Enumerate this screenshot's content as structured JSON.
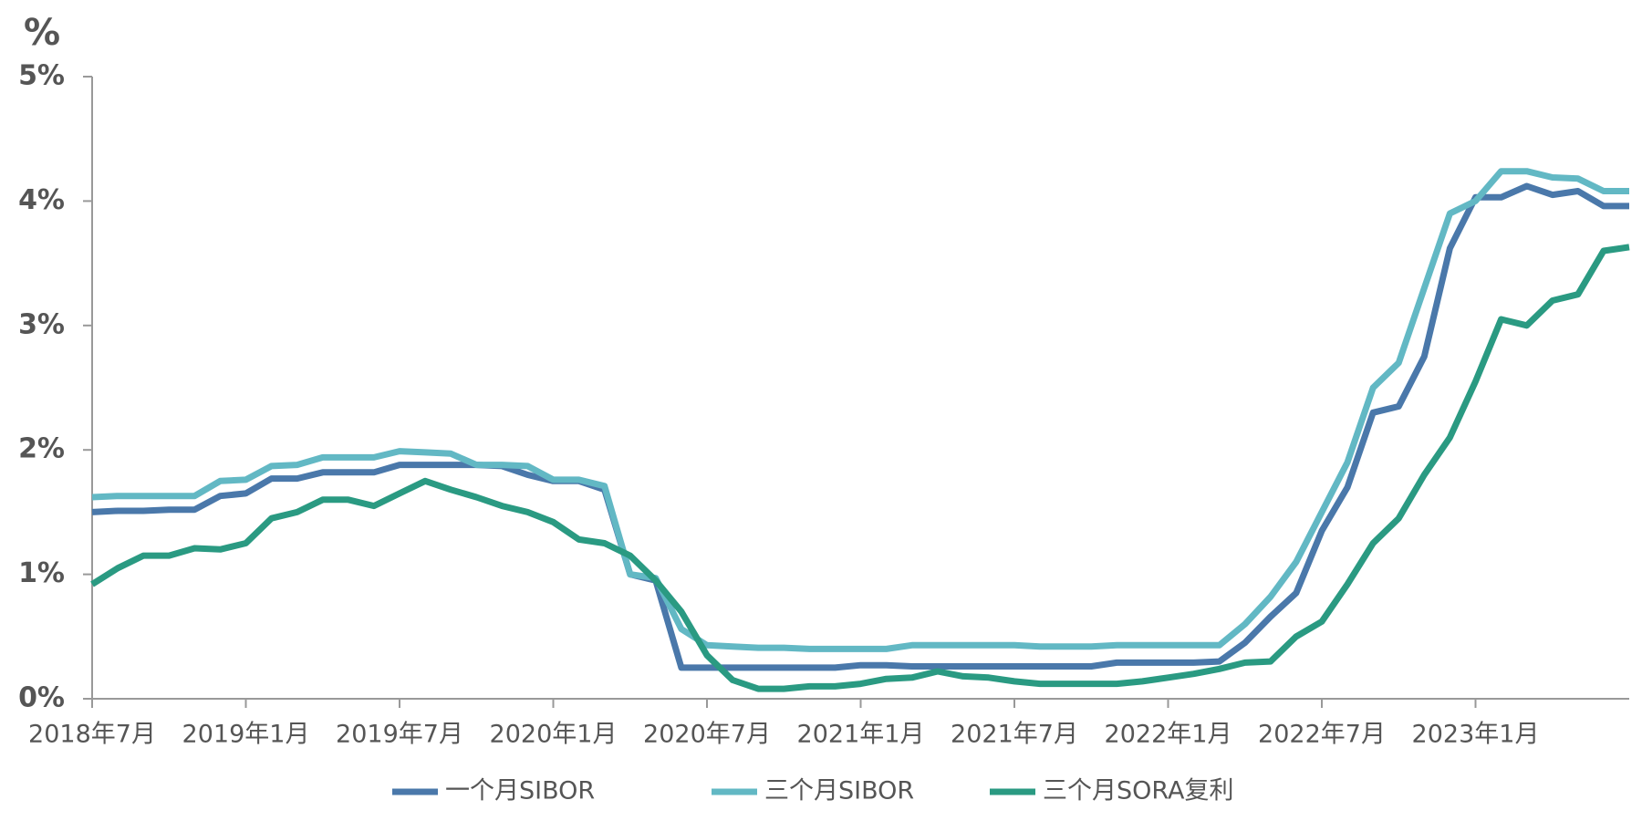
{
  "chart_data": {
    "type": "line",
    "ylabel": "%",
    "categories": [
      "2018年7月",
      null,
      null,
      null,
      null,
      null,
      "2019年1月",
      null,
      null,
      null,
      null,
      null,
      "2019年7月",
      null,
      null,
      null,
      null,
      null,
      "2020年1月",
      null,
      null,
      null,
      null,
      null,
      "2020年7月",
      null,
      null,
      null,
      null,
      null,
      "2021年1月",
      null,
      null,
      null,
      null,
      null,
      "2021年7月",
      null,
      null,
      null,
      null,
      null,
      "2022年1月",
      null,
      null,
      null,
      null,
      null,
      "2022年7月",
      null,
      null,
      null,
      null,
      null,
      "2023年1月",
      null,
      null,
      null,
      null,
      null,
      null
    ],
    "series": [
      {
        "name": "一个月SIBOR",
        "color": "#4a78aa",
        "values": [
          1.5,
          1.51,
          1.51,
          1.52,
          1.52,
          1.63,
          1.65,
          1.77,
          1.77,
          1.82,
          1.82,
          1.82,
          1.88,
          1.88,
          1.88,
          1.88,
          1.87,
          1.8,
          1.75,
          1.75,
          1.68,
          1.0,
          0.95,
          0.25,
          0.25,
          0.25,
          0.25,
          0.25,
          0.25,
          0.25,
          0.27,
          0.27,
          0.26,
          0.26,
          0.26,
          0.26,
          0.26,
          0.26,
          0.26,
          0.26,
          0.29,
          0.29,
          0.29,
          0.29,
          0.3,
          0.45,
          0.66,
          0.85,
          1.35,
          1.7,
          2.3,
          2.35,
          2.75,
          3.62,
          4.03,
          4.03,
          4.12,
          4.05,
          4.08,
          3.96,
          3.96
        ]
      },
      {
        "name": "三个月SIBOR",
        "color": "#62b8c4",
        "values": [
          1.62,
          1.63,
          1.63,
          1.63,
          1.63,
          1.75,
          1.76,
          1.87,
          1.88,
          1.94,
          1.94,
          1.94,
          1.99,
          1.98,
          1.97,
          1.88,
          1.88,
          1.87,
          1.76,
          1.76,
          1.71,
          1.0,
          0.97,
          0.56,
          0.43,
          0.42,
          0.41,
          0.41,
          0.4,
          0.4,
          0.4,
          0.4,
          0.43,
          0.43,
          0.43,
          0.43,
          0.43,
          0.42,
          0.42,
          0.42,
          0.43,
          0.43,
          0.43,
          0.43,
          0.43,
          0.6,
          0.82,
          1.1,
          1.5,
          1.9,
          2.5,
          2.7,
          3.3,
          3.9,
          4.0,
          4.24,
          4.24,
          4.19,
          4.18,
          4.08,
          4.08
        ]
      },
      {
        "name": "三个月SORA复利",
        "color": "#2a9a82",
        "values": [
          0.92,
          1.05,
          1.15,
          1.15,
          1.21,
          1.2,
          1.25,
          1.45,
          1.5,
          1.6,
          1.6,
          1.55,
          1.65,
          1.75,
          1.68,
          1.62,
          1.55,
          1.5,
          1.42,
          1.28,
          1.25,
          1.15,
          0.95,
          0.7,
          0.35,
          0.15,
          0.08,
          0.08,
          0.1,
          0.1,
          0.12,
          0.16,
          0.17,
          0.22,
          0.18,
          0.17,
          0.14,
          0.12,
          0.12,
          0.12,
          0.12,
          0.14,
          0.17,
          0.2,
          0.24,
          0.29,
          0.3,
          0.5,
          0.62,
          0.92,
          1.25,
          1.45,
          1.8,
          2.1,
          2.55,
          3.05,
          3.0,
          3.2,
          3.25,
          3.6,
          3.63
        ]
      }
    ],
    "ylim": [
      0,
      5
    ],
    "yticks": [
      {
        "value": 0,
        "label": "0%"
      },
      {
        "value": 1,
        "label": "1%"
      },
      {
        "value": 2,
        "label": "2%"
      },
      {
        "value": 3,
        "label": "3%"
      },
      {
        "value": 4,
        "label": "4%"
      },
      {
        "value": 5,
        "label": "5%"
      }
    ],
    "grid": false,
    "legend": "bottom"
  }
}
